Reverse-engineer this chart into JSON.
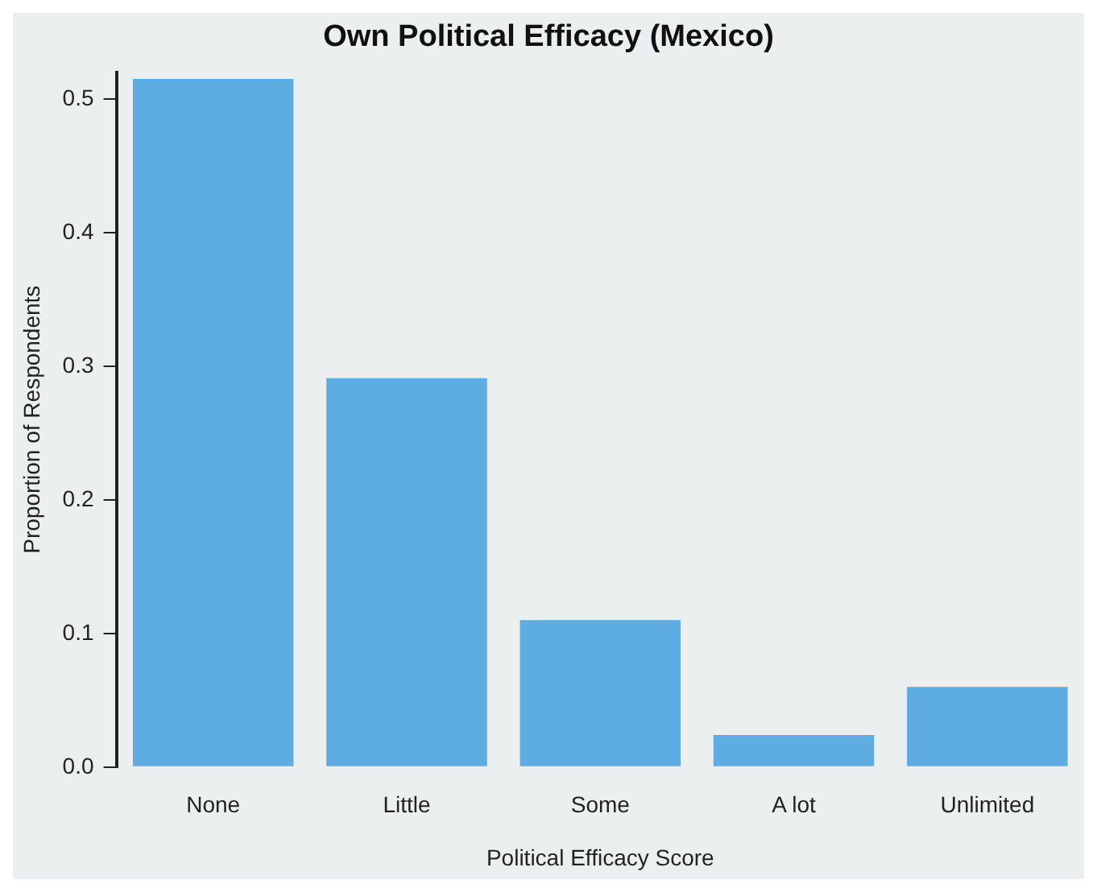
{
  "chart_data": {
    "type": "bar",
    "title": "Own Political Efficacy (Mexico)",
    "xlabel": "Political Efficacy Score",
    "ylabel": "Proportion of Respondents",
    "categories": [
      "None",
      "Little",
      "Some",
      "A lot",
      "Unlimited"
    ],
    "values": [
      0.515,
      0.291,
      0.11,
      0.024,
      0.06
    ],
    "color": "#5dade2",
    "ylim": [
      0,
      0.52
    ],
    "yticks": [
      {
        "value": 0,
        "label": "0.0"
      },
      0.1,
      0.2,
      0.3,
      0.4,
      0.5
    ],
    "grid": false,
    "legend": false
  }
}
